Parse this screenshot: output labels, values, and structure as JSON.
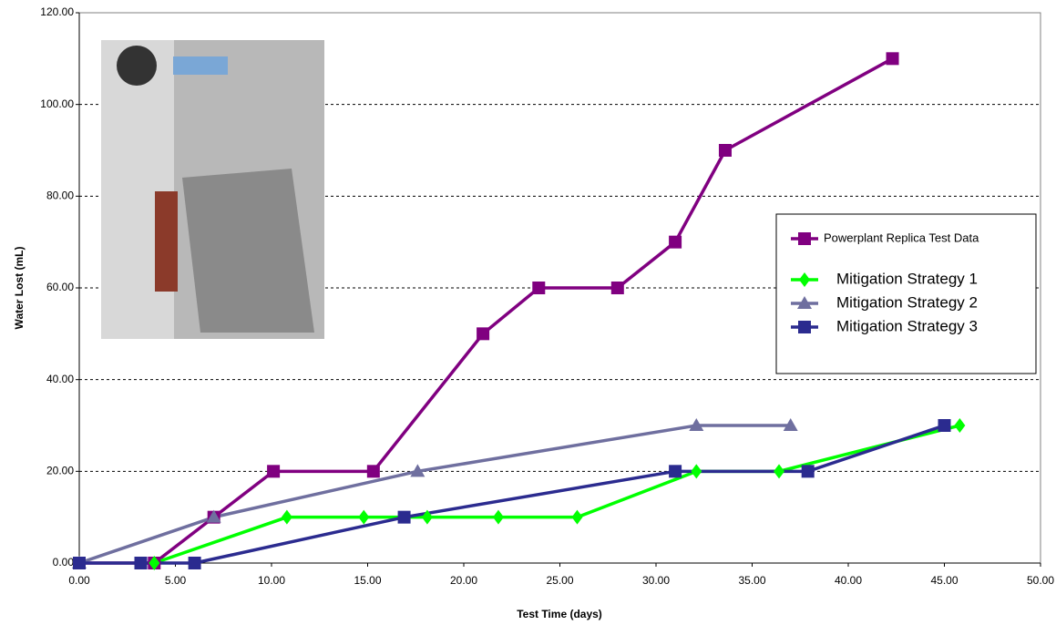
{
  "chart_data": {
    "type": "line",
    "xlabel": "Test Time (days)",
    "ylabel": "Water Lost (mL)",
    "xlim": [
      0,
      50
    ],
    "ylim": [
      0,
      120
    ],
    "xticks": [
      {
        "value": 0,
        "label": "0.00"
      },
      {
        "value": 5,
        "label": "5.00"
      },
      {
        "value": 10,
        "label": "10.00"
      },
      {
        "value": 15,
        "label": "15.00"
      },
      {
        "value": 20,
        "label": "20.00"
      },
      {
        "value": 25,
        "label": "25.00"
      },
      {
        "value": 30,
        "label": "30.00"
      },
      {
        "value": 35,
        "label": "35.00"
      },
      {
        "value": 40,
        "label": "40.00"
      },
      {
        "value": 45,
        "label": "45.00"
      },
      {
        "value": 50,
        "label": "50.00"
      }
    ],
    "yticks": [
      {
        "value": 0,
        "label": "0.00"
      },
      {
        "value": 20,
        "label": "20.00"
      },
      {
        "value": 40,
        "label": "40.00"
      },
      {
        "value": 60,
        "label": "60.00"
      },
      {
        "value": 80,
        "label": "80.00"
      },
      {
        "value": 100,
        "label": "100.00"
      },
      {
        "value": 120,
        "label": "120.00"
      }
    ],
    "grid": true,
    "legend": "right",
    "series": [
      {
        "name": "Powerplant Replica Test Data",
        "color": "#800080",
        "marker": "square",
        "x": [
          0,
          3.9,
          7.0,
          10.1,
          15.3,
          21.0,
          23.9,
          28.0,
          31.0,
          33.6,
          42.3
        ],
        "values": [
          0,
          0,
          10,
          20,
          20,
          50,
          60,
          60,
          70,
          90,
          110
        ]
      },
      {
        "name": "Mitigation Strategy 1",
        "color": "#00ff00",
        "marker": "diamond",
        "x": [
          3.9,
          10.8,
          14.8,
          18.1,
          21.8,
          25.9,
          32.1,
          36.4,
          45.8
        ],
        "values": [
          0,
          10,
          10,
          10,
          10,
          10,
          20,
          20,
          30
        ]
      },
      {
        "name": "Mitigation Strategy 2",
        "color": "#6f6f9f",
        "marker": "triangle",
        "x": [
          0,
          7.0,
          17.6,
          32.1,
          37.0
        ],
        "values": [
          0,
          10,
          20,
          30,
          30
        ]
      },
      {
        "name": "Mitigation Strategy 3",
        "color": "#2b2b8f",
        "marker": "square",
        "x": [
          0,
          3.2,
          6.0,
          16.9,
          31.0,
          37.9,
          45.0
        ],
        "values": [
          0,
          0,
          0,
          10,
          20,
          20,
          30
        ]
      }
    ]
  }
}
